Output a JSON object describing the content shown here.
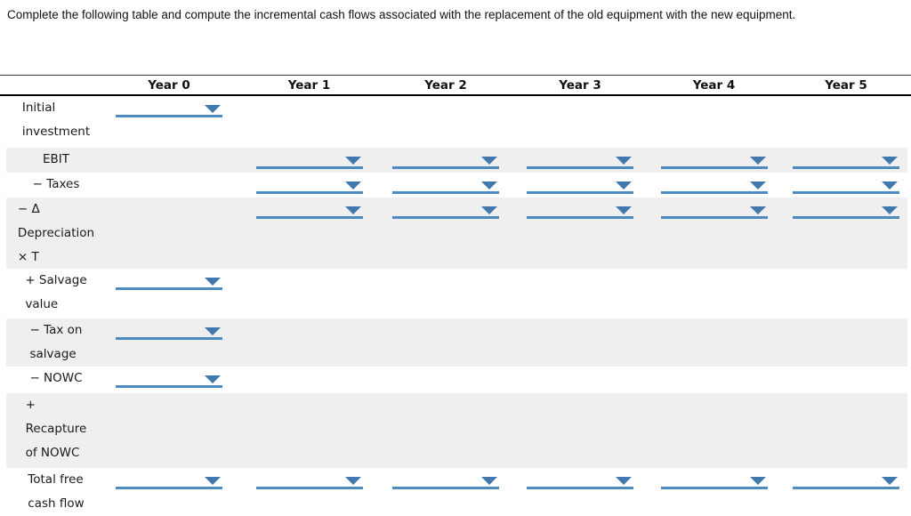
{
  "instruction": "Complete the following table and compute the incremental cash flows associated with the replacement of the old equipment with the new equipment.",
  "table": {
    "columns": [
      "Year 0",
      "Year 1",
      "Year 2",
      "Year 3",
      "Year 4",
      "Year 5"
    ],
    "rows": [
      {
        "label": "Initial\ninvestment",
        "shaded": false,
        "dropdown_columns": [
          "Year 0"
        ]
      },
      {
        "label": "EBIT",
        "shaded": true,
        "dropdown_columns": [
          "Year 1",
          "Year 2",
          "Year 3",
          "Year 4",
          "Year 5"
        ]
      },
      {
        "label": "− Taxes",
        "shaded": false,
        "dropdown_columns": [
          "Year 1",
          "Year 2",
          "Year 3",
          "Year 4",
          "Year 5"
        ]
      },
      {
        "label": "− Δ\nDepreciation\n× T",
        "shaded": true,
        "dropdown_columns": [
          "Year 1",
          "Year 2",
          "Year 3",
          "Year 4",
          "Year 5"
        ]
      },
      {
        "label": "+ Salvage\nvalue",
        "shaded": false,
        "dropdown_columns": [
          "Year 0"
        ]
      },
      {
        "label": "− Tax on\nsalvage",
        "shaded": true,
        "dropdown_columns": [
          "Year 0"
        ]
      },
      {
        "label": "− NOWC",
        "shaded": false,
        "dropdown_columns": [
          "Year 0"
        ]
      },
      {
        "label": "+\nRecapture\nof NOWC",
        "shaded": true,
        "dropdown_columns": []
      },
      {
        "label": "Total free\ncash flow",
        "shaded": false,
        "dropdown_columns": [
          "Year 0",
          "Year 1",
          "Year 2",
          "Year 3",
          "Year 4",
          "Year 5"
        ]
      }
    ],
    "dropdowns_empty": true
  },
  "colors": {
    "accent_blue": "#4e8bbf",
    "caret_blue": "#4178ad",
    "row_shade": "#efefef",
    "header_rule": "#000000",
    "text": "#1a1a1a"
  }
}
